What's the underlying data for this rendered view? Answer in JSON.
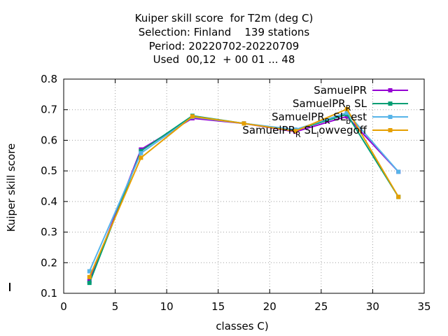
{
  "chart_data": {
    "type": "line",
    "title": [
      "Kuiper skill score  for T2m (deg C)",
      "Selection: Finland    139 stations",
      "Period: 20220702-20220709",
      "Used  00,12  + 00 01 ... 48"
    ],
    "xlabel": "classes C)",
    "ylabel": "Kuiper skill score",
    "xlim": [
      0,
      35
    ],
    "ylim": [
      0.1,
      0.8
    ],
    "xticks": [
      0,
      5,
      10,
      15,
      20,
      25,
      30,
      35
    ],
    "yticks": [
      0.1,
      0.2,
      0.3,
      0.4,
      0.5,
      0.6,
      0.7,
      0.8
    ],
    "xtick_labels": [
      "0",
      "5",
      "10",
      "15",
      "20",
      "25",
      "30",
      "35"
    ],
    "ytick_labels": [
      "0.1",
      "0.2",
      "0.3",
      "0.4",
      "0.5",
      "0.6",
      "0.7",
      "0.8"
    ],
    "grid": true,
    "legend_position": "top-right",
    "series": [
      {
        "name": "SamuelPR",
        "color": "#9400d3",
        "x": [
          2.5,
          7.5,
          12.5,
          17.5,
          22.5,
          27.5,
          32.5
        ],
        "y": [
          0.14,
          0.57,
          0.672,
          0.655,
          0.628,
          0.678,
          0.497
        ]
      },
      {
        "name": "SamuelPR_R SL",
        "color": "#009e73",
        "x": [
          2.5,
          7.5,
          12.5,
          17.5,
          22.5,
          27.5,
          32.5
        ],
        "y": [
          0.134,
          0.565,
          0.68,
          0.655,
          0.633,
          0.685,
          0.415
        ]
      },
      {
        "name": "SamuelPR_R SL_best",
        "color": "#56b4e9",
        "x": [
          2.5,
          7.5,
          12.5,
          17.5,
          22.5,
          27.5,
          32.5
        ],
        "y": [
          0.172,
          0.558,
          0.676,
          0.655,
          0.635,
          0.69,
          0.497
        ]
      },
      {
        "name": "SamuelPR_R SL_lowvegoff",
        "color": "#e69f00",
        "x": [
          2.5,
          7.5,
          12.5,
          17.5,
          22.5,
          27.5,
          32.5
        ],
        "y": [
          0.153,
          0.543,
          0.678,
          0.655,
          0.63,
          0.702,
          0.415
        ]
      }
    ]
  }
}
